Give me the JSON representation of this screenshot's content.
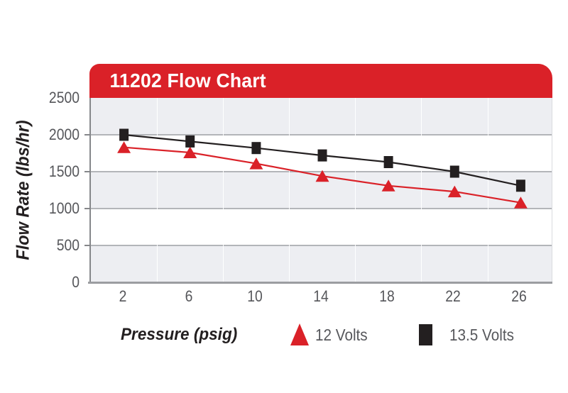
{
  "chart": {
    "banner_title": "11202 Flow Chart",
    "y_axis_title": "Flow Rate (lbs/hr)",
    "x_axis_title": "Pressure (psig)",
    "colors": {
      "banner_red": "#da2128",
      "series_12v_red": "#da2128",
      "series_135v_black": "#231f20",
      "band_gray": "#edeef2",
      "gridline_gray": "#b3b5b9",
      "axis_gray": "#9b9da1",
      "tick_text_gray": "#55565a"
    }
  },
  "legend": {
    "items": [
      {
        "label": "12 Volts",
        "marker": "triangle-icon",
        "color": "#da2128"
      },
      {
        "label": "13.5 Volts",
        "marker": "square-icon",
        "color": "#231f20"
      }
    ]
  },
  "chart_data": {
    "type": "line",
    "title": "11202 Flow Chart",
    "xlabel": "Pressure (psig)",
    "ylabel": "Flow Rate (lbs/hr)",
    "x": [
      2,
      6,
      10,
      14,
      18,
      22,
      26
    ],
    "y_ticks": [
      2500,
      2000,
      1500,
      1000,
      500,
      0
    ],
    "ylim": [
      0,
      2500
    ],
    "xlim_categories": "7 equal columns, ticks centered",
    "grid": "horizontal gridlines every 500 with alternating gray/white bands",
    "legend_position": "bottom",
    "series": [
      {
        "name": "12 Volts",
        "marker": "triangle",
        "color": "#da2128",
        "values": [
          1830,
          1760,
          1610,
          1440,
          1310,
          1230,
          1080
        ]
      },
      {
        "name": "13.5 Volts",
        "marker": "square",
        "color": "#231f20",
        "values": [
          2000,
          1910,
          1820,
          1720,
          1630,
          1500,
          1310
        ]
      }
    ]
  }
}
